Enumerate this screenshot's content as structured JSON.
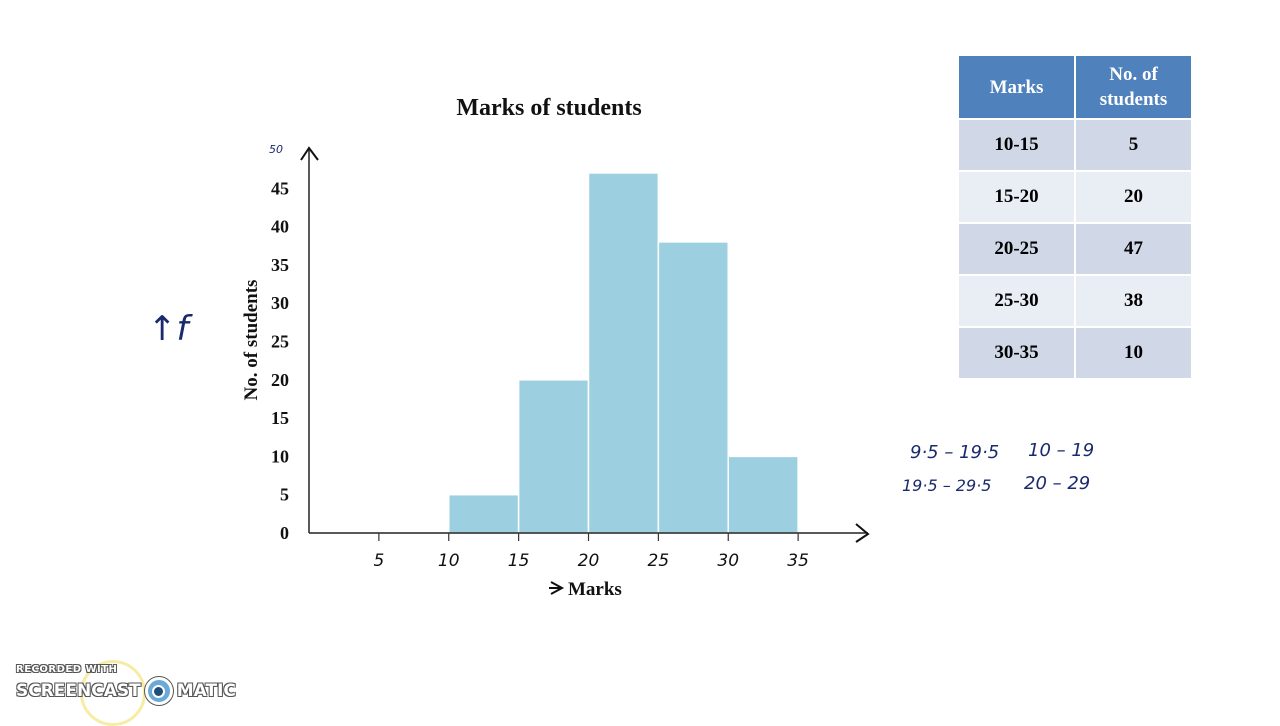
{
  "chart_data": {
    "type": "bar",
    "title": "Marks  of students",
    "xlabel": "Marks",
    "ylabel": "No. of students",
    "bins": [
      [
        10,
        15
      ],
      [
        15,
        20
      ],
      [
        20,
        25
      ],
      [
        25,
        30
      ],
      [
        30,
        35
      ]
    ],
    "values": [
      5,
      20,
      47,
      38,
      10
    ],
    "xlim": [
      0,
      40
    ],
    "ylim": [
      0,
      50
    ],
    "y_ticks": [
      0,
      5,
      10,
      15,
      20,
      25,
      30,
      35,
      40,
      45
    ],
    "x_ticks_handwritten": [
      "5",
      "10",
      "15",
      "20",
      "25",
      "30",
      "35"
    ],
    "y_top_handwritten": "50",
    "bar_color": "#9ccfe0",
    "grid": false
  },
  "table": {
    "headers": [
      "Marks",
      "No. of students"
    ],
    "rows": [
      [
        "10-15",
        "5"
      ],
      [
        "15-20",
        "20"
      ],
      [
        "20-25",
        "47"
      ],
      [
        "25-30",
        "38"
      ],
      [
        "30-35",
        "10"
      ]
    ]
  },
  "annotations": {
    "frequency_note": "↑f",
    "note_line1_a": "9·5 – 19·5",
    "note_line1_b": "10 – 19",
    "note_line2_a": "19·5 – 29·5",
    "note_line2_b": "20 – 29"
  },
  "watermark": {
    "line1": "RECORDED WITH",
    "line2_a": "SCREENCAST",
    "line2_b": "MATIC"
  }
}
